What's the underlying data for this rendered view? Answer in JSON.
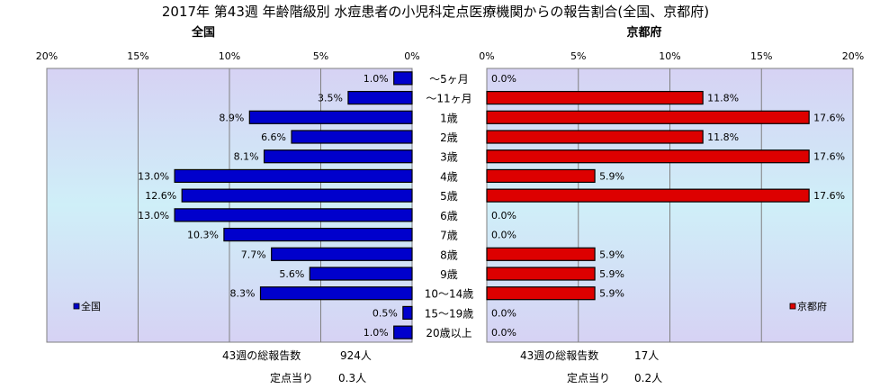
{
  "title": "2017年 第43週 年齢階級別 水痘患者の小児科定点医療機関からの報告割合(全国、京都府)",
  "chart_data": [
    {
      "type": "bar",
      "orientation": "horizontal",
      "direction": "right-to-left",
      "title": "全国",
      "categories": [
        "～5ヶ月",
        "～11ヶ月",
        "1歳",
        "2歳",
        "3歳",
        "4歳",
        "5歳",
        "6歳",
        "7歳",
        "8歳",
        "9歳",
        "10～14歳",
        "15～19歳",
        "20歳以上"
      ],
      "series": [
        {
          "name": "全国",
          "values": [
            1.0,
            3.5,
            8.9,
            6.6,
            8.1,
            13.0,
            12.6,
            13.0,
            10.3,
            7.7,
            5.6,
            8.3,
            0.5,
            1.0
          ],
          "color": "#0000cc"
        }
      ],
      "value_labels": [
        "1.0%",
        "3.5%",
        "8.9%",
        "6.6%",
        "8.1%",
        "13.0%",
        "12.6%",
        "13.0%",
        "10.3%",
        "7.7%",
        "5.6%",
        "8.3%",
        "0.5%",
        "1.0%"
      ],
      "xlim": [
        0,
        20
      ],
      "ticks": [
        "0%",
        "5%",
        "10%",
        "15%",
        "20%"
      ],
      "grid": true,
      "legend_position": "bottom-left"
    },
    {
      "type": "bar",
      "orientation": "horizontal",
      "direction": "left-to-right",
      "title": "京都府",
      "categories": [
        "～5ヶ月",
        "～11ヶ月",
        "1歳",
        "2歳",
        "3歳",
        "4歳",
        "5歳",
        "6歳",
        "7歳",
        "8歳",
        "9歳",
        "10～14歳",
        "15～19歳",
        "20歳以上"
      ],
      "series": [
        {
          "name": "京都府",
          "values": [
            0.0,
            11.8,
            17.6,
            11.8,
            17.6,
            5.9,
            17.6,
            0.0,
            0.0,
            5.9,
            5.9,
            5.9,
            0.0,
            0.0
          ],
          "color": "#dd0000"
        }
      ],
      "value_labels": [
        "0.0%",
        "11.8%",
        "17.6%",
        "11.8%",
        "17.6%",
        "5.9%",
        "17.6%",
        "0.0%",
        "0.0%",
        "5.9%",
        "5.9%",
        "5.9%",
        "0.0%",
        "0.0%"
      ],
      "xlim": [
        0,
        20
      ],
      "ticks": [
        "0%",
        "5%",
        "10%",
        "15%",
        "20%"
      ],
      "grid": true,
      "legend_position": "bottom-right"
    }
  ],
  "footer": {
    "national_total_label": "43週の総報告数",
    "national_total_value": "924人",
    "national_per_label": "定点当り",
    "national_per_value": "0.3人",
    "kyoto_total_label": "43週の総報告数",
    "kyoto_total_value": "17人",
    "kyoto_per_label": "定点当り",
    "kyoto_per_value": "0.2人"
  }
}
